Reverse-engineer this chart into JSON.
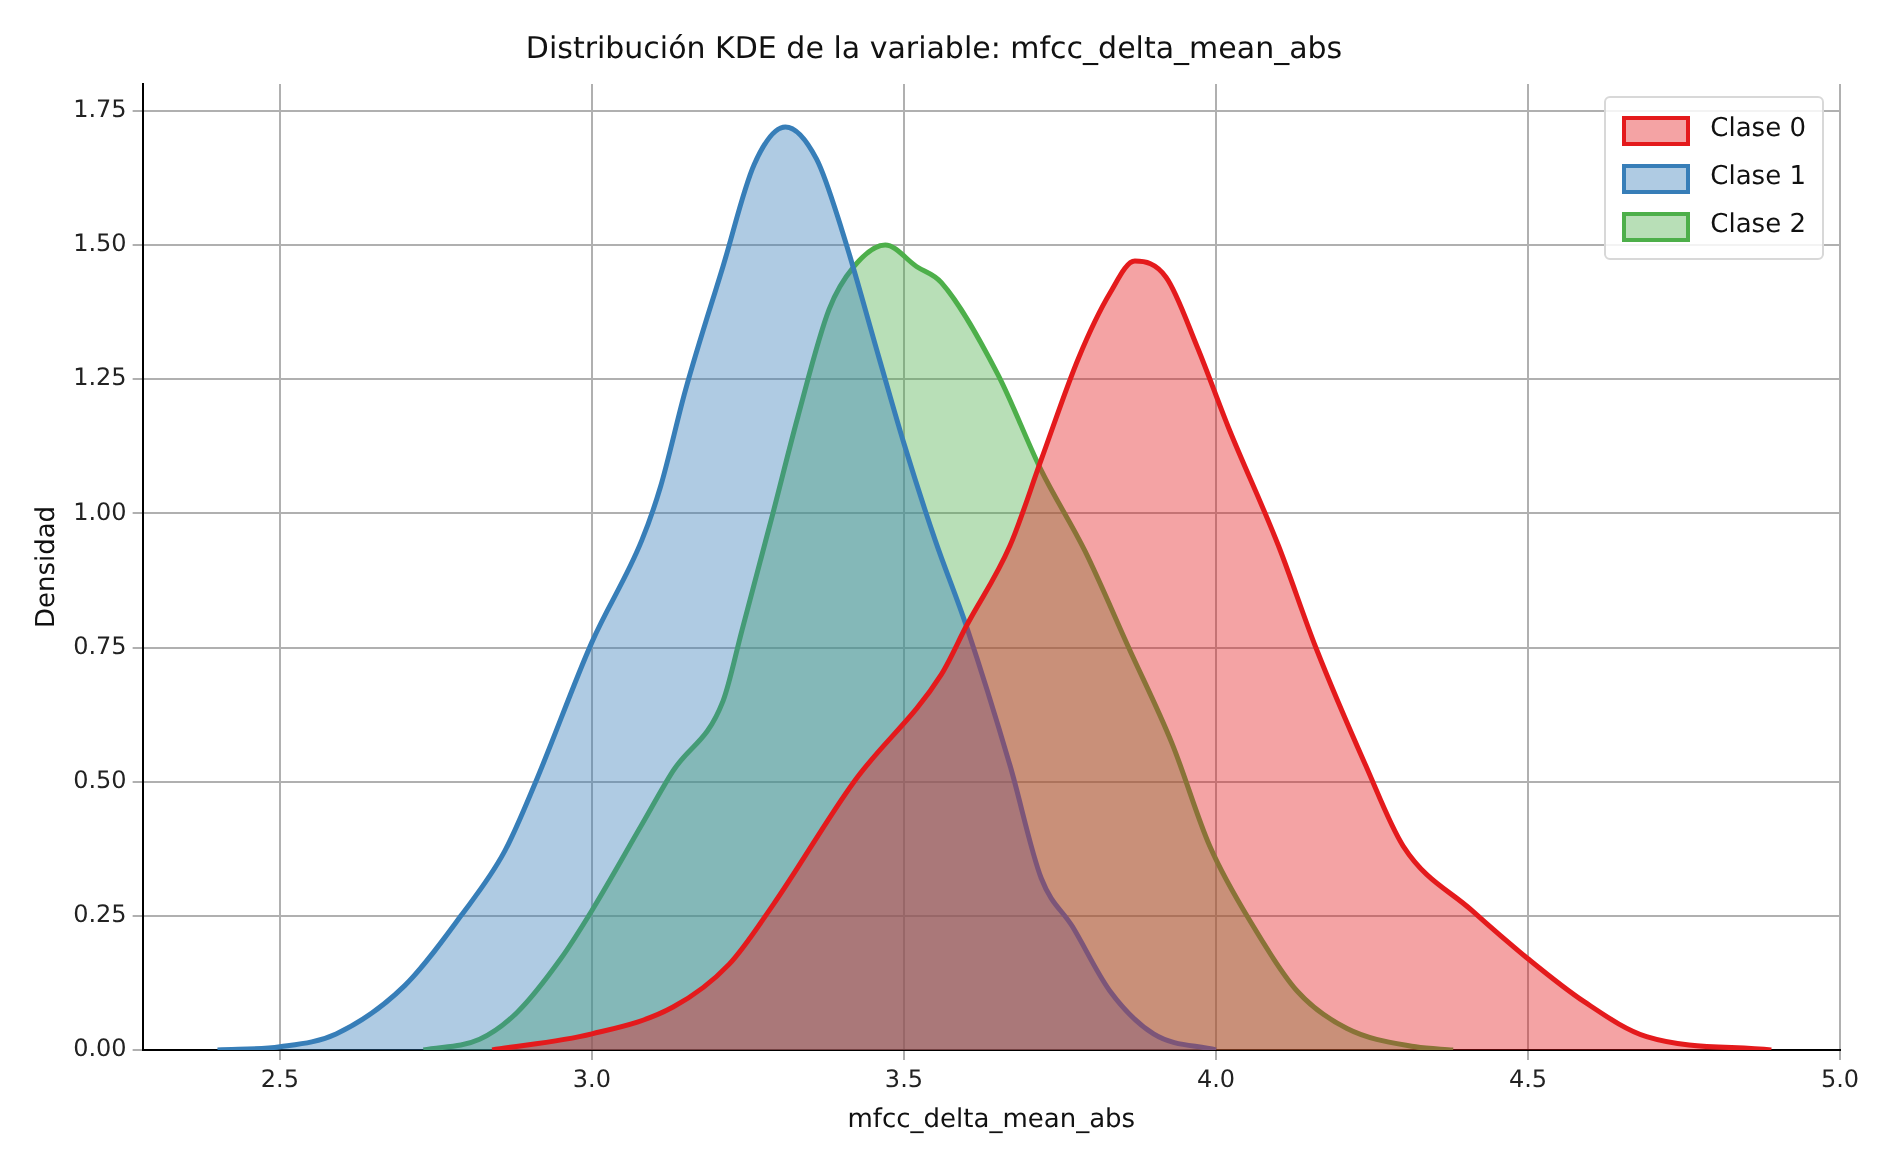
{
  "chart_data": {
    "type": "area",
    "title": "Distribución KDE de la variable: mfcc_delta_mean_abs",
    "xlabel": "mfcc_delta_mean_abs",
    "ylabel": "Densidad",
    "xlim": [
      2.28,
      5.0
    ],
    "ylim": [
      0,
      1.8
    ],
    "xticks": [
      2.5,
      {
        "value": 3,
        "label": "3.0"
      },
      3.5,
      {
        "value": 4,
        "label": "4.0"
      },
      4.5,
      {
        "value": 5,
        "label": "5.0"
      }
    ],
    "yticks": [
      {
        "value": 0,
        "label": "0.00"
      },
      0.25,
      {
        "value": 0.5,
        "label": "0.50"
      },
      0.75,
      {
        "value": 1,
        "label": "1.00"
      },
      1.25,
      {
        "value": 1.5,
        "label": "1.50"
      },
      1.75
    ],
    "grid": true,
    "legend": "top right",
    "series": [
      {
        "name": "Clase 0",
        "color": "#e41a1c",
        "x": [
          2.84,
          3.0,
          3.13,
          3.22,
          3.29,
          3.42,
          3.56,
          3.6,
          3.67,
          3.72,
          3.78,
          3.83,
          3.87,
          3.92,
          3.97,
          4.02,
          4.1,
          4.16,
          4.24,
          4.3,
          4.41,
          4.5,
          4.59,
          4.69,
          4.89
        ],
        "values": [
          0,
          0.03,
          0.08,
          0.16,
          0.27,
          0.5,
          0.7,
          0.79,
          0.94,
          1.1,
          1.29,
          1.41,
          1.47,
          1.44,
          1.31,
          1.16,
          0.94,
          0.75,
          0.53,
          0.38,
          0.26,
          0.17,
          0.09,
          0.025,
          0
        ]
      },
      {
        "name": "Clase 1",
        "color": "#377eb8",
        "x": [
          2.4,
          2.5,
          2.59,
          2.7,
          2.79,
          2.86,
          2.91,
          3.0,
          3.08,
          3.11,
          3.15,
          3.21,
          3.26,
          3.31,
          3.36,
          3.4,
          3.46,
          3.5,
          3.55,
          3.6,
          3.67,
          3.72,
          3.77,
          3.83,
          3.9,
          4.0
        ],
        "values": [
          0,
          0.006,
          0.03,
          0.12,
          0.25,
          0.37,
          0.5,
          0.76,
          0.95,
          1.05,
          1.23,
          1.46,
          1.65,
          1.72,
          1.66,
          1.53,
          1.29,
          1.13,
          0.95,
          0.79,
          0.53,
          0.32,
          0.23,
          0.11,
          0.03,
          0
        ]
      },
      {
        "name": "Clase 2",
        "color": "#4daf4a",
        "x": [
          2.73,
          2.82,
          2.88,
          2.95,
          3.0,
          3.08,
          3.13,
          3.21,
          3.24,
          3.29,
          3.33,
          3.38,
          3.42,
          3.47,
          3.52,
          3.56,
          3.65,
          3.72,
          3.79,
          3.86,
          3.93,
          3.99,
          4.06,
          4.13,
          4.21,
          4.32,
          4.38
        ],
        "values": [
          0,
          0.02,
          0.07,
          0.17,
          0.26,
          0.42,
          0.52,
          0.65,
          0.78,
          1.0,
          1.18,
          1.38,
          1.46,
          1.5,
          1.46,
          1.43,
          1.26,
          1.08,
          0.93,
          0.75,
          0.57,
          0.38,
          0.23,
          0.11,
          0.04,
          0.006,
          0
        ]
      }
    ]
  }
}
